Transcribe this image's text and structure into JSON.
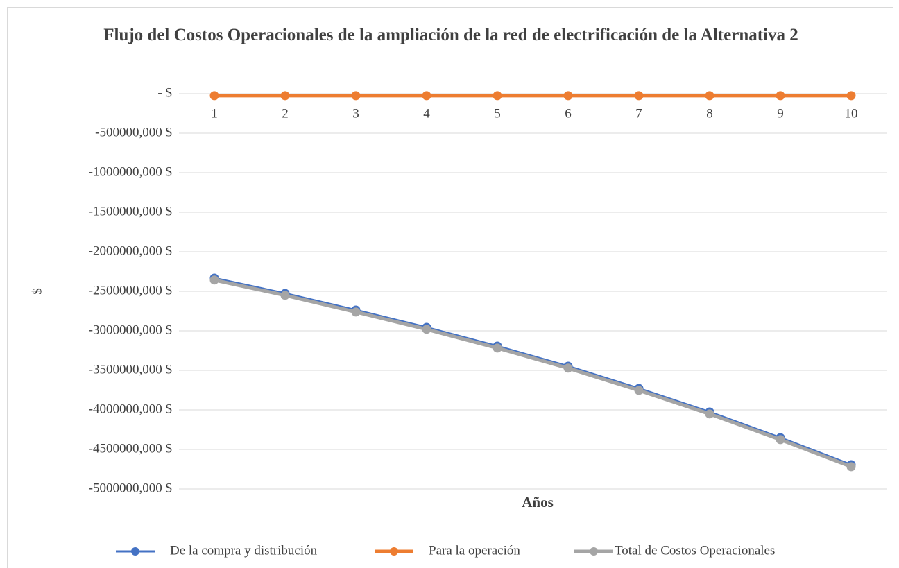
{
  "chart_data": {
    "type": "line",
    "title": "Flujo del Costos Operacionales de la ampliación de la red de electrificación de la Alternativa 2",
    "x_label": "Años",
    "y_label": "$",
    "categories": [
      "1",
      "2",
      "3",
      "4",
      "5",
      "6",
      "7",
      "8",
      "9",
      "10"
    ],
    "series": [
      {
        "name": "De la compra y distribución",
        "color": "#4472c4",
        "values": [
          -2333000,
          -2526000,
          -2737000,
          -2956000,
          -3193000,
          -3447000,
          -3728000,
          -4026000,
          -4351000,
          -4693000
        ]
      },
      {
        "name": "Para la operación",
        "color": "#ed7d31",
        "values": [
          -25000,
          -25000,
          -25000,
          -25000,
          -25000,
          -25000,
          -25000,
          -25000,
          -25000,
          -25000
        ]
      },
      {
        "name": "Total de Costos Operacionales",
        "color": "#a5a5a5",
        "values": [
          -2358000,
          -2551000,
          -2762000,
          -2981000,
          -3218000,
          -3472000,
          -3753000,
          -4051000,
          -4376000,
          -4718000
        ]
      }
    ],
    "ylim": [
      -5000000,
      0
    ],
    "yticks": [
      {
        "value": 0,
        "label": "-  $"
      },
      {
        "value": -500000,
        "label": "-500000,000 $"
      },
      {
        "value": -1000000,
        "label": "-1000000,000 $"
      },
      {
        "value": -1500000,
        "label": "-1500000,000 $"
      },
      {
        "value": -2000000,
        "label": "-2000000,000 $"
      },
      {
        "value": -2500000,
        "label": "-2500000,000 $"
      },
      {
        "value": -3000000,
        "label": "-3000000,000 $"
      },
      {
        "value": -3500000,
        "label": "-3500000,000 $"
      },
      {
        "value": -4000000,
        "label": "-4000000,000 $"
      },
      {
        "value": -4500000,
        "label": "-4500000,000 $"
      },
      {
        "value": -5000000,
        "label": "-5000000,000 $"
      }
    ],
    "grid": true,
    "legend": "bottom"
  }
}
